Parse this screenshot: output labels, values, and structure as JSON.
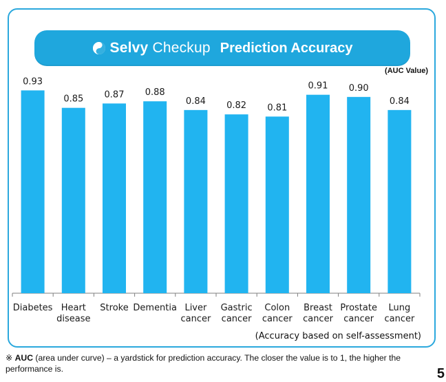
{
  "header": {
    "brand_name": "Selvy Checkup",
    "brand_strong": "Selvy",
    "brand_rest": "Checkup",
    "title": "Prediction Accuracy"
  },
  "chart_data": {
    "type": "bar",
    "categories": [
      "Diabetes",
      "Heart disease",
      "Stroke",
      "Dementia",
      "Liver cancer",
      "Gastric cancer",
      "Colon cancer",
      "Breast cancer",
      "Prostate cancer",
      "Lung cancer"
    ],
    "category_lines": [
      [
        "Diabetes"
      ],
      [
        "Heart",
        "disease"
      ],
      [
        "Stroke"
      ],
      [
        "Dementia"
      ],
      [
        "Liver",
        "cancer"
      ],
      [
        "Gastric",
        "cancer"
      ],
      [
        "Colon",
        "cancer"
      ],
      [
        "Breast",
        "cancer"
      ],
      [
        "Prostate",
        "cancer"
      ],
      [
        "Lung",
        "cancer"
      ]
    ],
    "values": [
      0.93,
      0.85,
      0.87,
      0.88,
      0.84,
      0.82,
      0.81,
      0.91,
      0.9,
      0.84
    ],
    "data_labels": [
      "0.93",
      "0.85",
      "0.87",
      "0.88",
      "0.84",
      "0.82",
      "0.81",
      "0.91",
      "0.90",
      "0.84"
    ],
    "unit_label": "(AUC Value)",
    "ylim": [
      0.0,
      0.95
    ],
    "grid": false,
    "legend": "none",
    "bar_color": "#21b4f0"
  },
  "notes": {
    "basis": "(Accuracy based on self-assessment)",
    "footer_mark": "※",
    "footer_strong": "AUC",
    "footer_rest": " (area under curve) – a yardstick for prediction accuracy. The closer the value is to 1, the higher the performance is."
  },
  "page_number": "5",
  "colors": {
    "accent": "#1fa7dd",
    "frame": "#2aa8dd",
    "bar": "#21b4f0"
  }
}
